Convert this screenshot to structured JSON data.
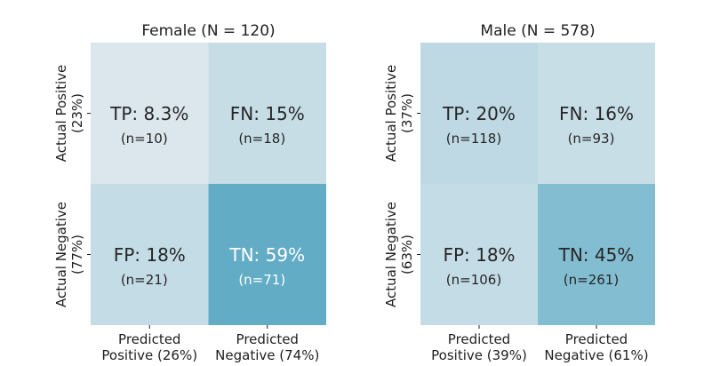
{
  "chart_data": [
    {
      "type": "heatmap",
      "title": "Female (N = 120)",
      "rows": [
        "Actual Positive\n(23%)",
        "Actual Negative\n(77%)"
      ],
      "cols": [
        "Predicted\nPositive (26%)",
        "Predicted\nNegative (74%)"
      ],
      "cells": [
        [
          {
            "label": "TP: 8.3%",
            "count": "(n=10)",
            "value": 8.3,
            "color": "#dbe6ed"
          },
          {
            "label": "FN: 15%",
            "count": "(n=18)",
            "value": 15,
            "color": "#c6dde5"
          }
        ],
        [
          {
            "label": "FP: 18%",
            "count": "(n=21)",
            "value": 18,
            "color": "#c4dce5"
          },
          {
            "label": "TN: 59%",
            "count": "(n=71)",
            "value": 59,
            "color": "#62acc6",
            "text_color": "#ffffff"
          }
        ]
      ]
    },
    {
      "type": "heatmap",
      "title": "Male (N = 578)",
      "rows": [
        "Actual Positive\n(37%)",
        "Actual Negative\n(63%)"
      ],
      "cols": [
        "Predicted\nPositive (39%)",
        "Predicted\nNegative (61%)"
      ],
      "cells": [
        [
          {
            "label": "TP: 20%",
            "count": "(n=118)",
            "value": 20,
            "color": "#bed9e4"
          },
          {
            "label": "FN: 16%",
            "count": "(n=93)",
            "value": 16,
            "color": "#c8dee6"
          }
        ],
        [
          {
            "label": "FP: 18%",
            "count": "(n=106)",
            "value": 18,
            "color": "#c4dce5"
          },
          {
            "label": "TN: 45%",
            "count": "(n=261)",
            "value": 45,
            "color": "#82bdd1"
          }
        ]
      ]
    }
  ]
}
